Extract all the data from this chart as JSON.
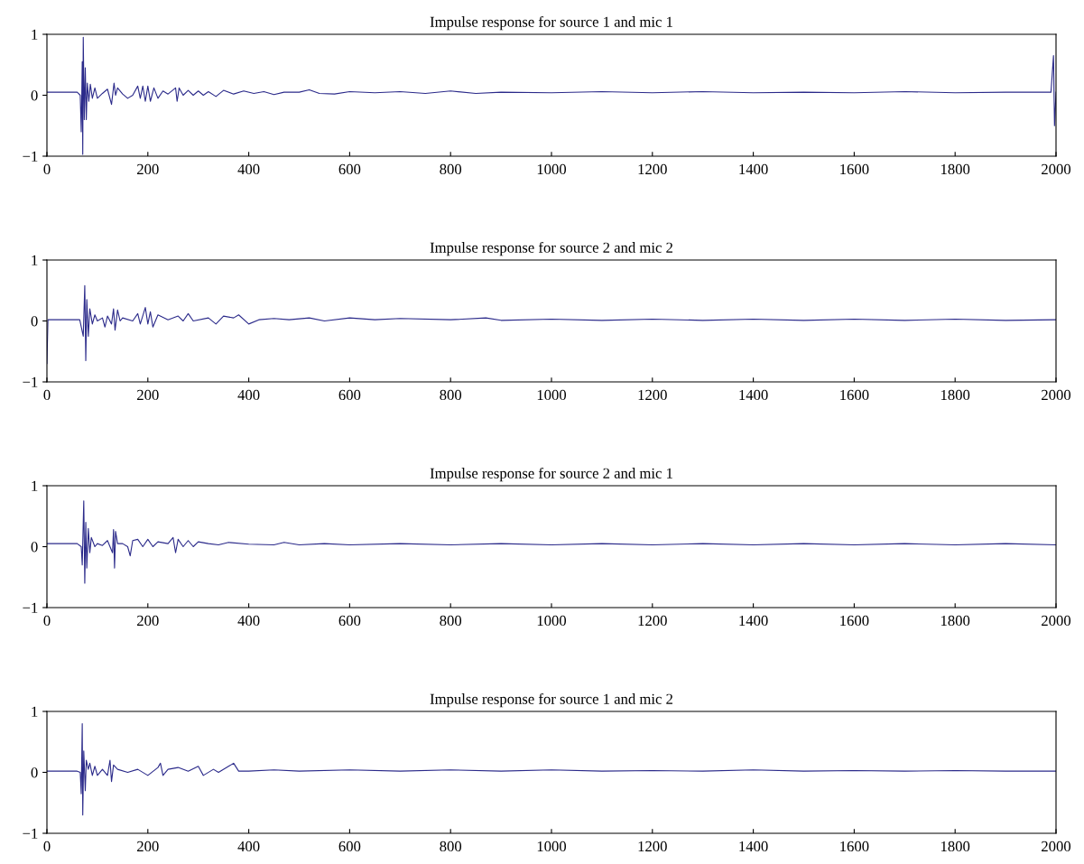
{
  "chart_data": [
    {
      "type": "line",
      "title": "Impulse response for source 1 and mic 1",
      "xlim": [
        0,
        2000
      ],
      "ylim": [
        -1,
        1
      ],
      "xticks": [
        0,
        200,
        400,
        600,
        800,
        1000,
        1200,
        1400,
        1600,
        1800,
        2000
      ],
      "yticks": [
        -1,
        0,
        1
      ],
      "grid": false,
      "x": [
        0,
        60,
        66,
        68,
        70,
        71,
        72,
        74,
        76,
        78,
        80,
        83,
        86,
        90,
        95,
        100,
        110,
        120,
        128,
        133,
        136,
        140,
        150,
        160,
        170,
        180,
        185,
        190,
        195,
        200,
        205,
        212,
        220,
        230,
        240,
        255,
        258,
        262,
        270,
        280,
        290,
        300,
        310,
        320,
        335,
        350,
        370,
        390,
        410,
        430,
        450,
        470,
        500,
        520,
        540,
        570,
        600,
        650,
        700,
        750,
        800,
        850,
        900,
        1000,
        1100,
        1200,
        1300,
        1400,
        1500,
        1600,
        1700,
        1800,
        1900,
        1990,
        1995,
        1997,
        2000
      ],
      "series": [
        {
          "color": "#2b2a8a",
          "values": [
            0.05,
            0.05,
            0.0,
            -0.6,
            0.55,
            -0.97,
            0.95,
            -0.4,
            0.45,
            -0.4,
            0.2,
            -0.1,
            0.18,
            -0.05,
            0.12,
            -0.05,
            0.03,
            0.1,
            -0.15,
            0.2,
            0.0,
            0.12,
            0.02,
            -0.05,
            0.0,
            0.15,
            -0.05,
            0.15,
            -0.1,
            0.15,
            -0.1,
            0.12,
            -0.05,
            0.07,
            0.02,
            0.12,
            -0.1,
            0.12,
            0.0,
            0.08,
            0.0,
            0.07,
            0.0,
            0.06,
            -0.02,
            0.08,
            0.02,
            0.07,
            0.03,
            0.06,
            0.01,
            0.05,
            0.05,
            0.09,
            0.03,
            0.02,
            0.06,
            0.04,
            0.06,
            0.03,
            0.07,
            0.03,
            0.05,
            0.04,
            0.06,
            0.04,
            0.06,
            0.04,
            0.05,
            0.04,
            0.06,
            0.04,
            0.05,
            0.05,
            0.65,
            -0.5,
            0.05
          ]
        }
      ]
    },
    {
      "type": "line",
      "title": "Impulse response for source 2 and mic 2",
      "xlim": [
        0,
        2000
      ],
      "ylim": [
        -1,
        1
      ],
      "xticks": [
        0,
        200,
        400,
        600,
        800,
        1000,
        1200,
        1400,
        1600,
        1800,
        2000
      ],
      "yticks": [
        -1,
        0,
        1
      ],
      "grid": false,
      "x": [
        0,
        2,
        20,
        65,
        72,
        75,
        77,
        79,
        82,
        85,
        90,
        95,
        100,
        110,
        115,
        120,
        128,
        132,
        135,
        140,
        145,
        150,
        170,
        180,
        185,
        195,
        200,
        205,
        210,
        220,
        240,
        260,
        270,
        280,
        290,
        320,
        335,
        350,
        370,
        380,
        400,
        420,
        450,
        480,
        520,
        550,
        600,
        650,
        700,
        800,
        870,
        900,
        1000,
        1100,
        1200,
        1300,
        1400,
        1500,
        1600,
        1700,
        1800,
        1900,
        2000
      ],
      "series": [
        {
          "color": "#2b2a8a",
          "values": [
            -0.7,
            0.02,
            0.02,
            0.02,
            -0.25,
            0.58,
            -0.65,
            0.35,
            -0.25,
            0.2,
            -0.05,
            0.1,
            0.0,
            0.05,
            -0.1,
            0.08,
            -0.05,
            0.2,
            -0.15,
            0.18,
            0.0,
            0.05,
            0.0,
            0.12,
            -0.05,
            0.22,
            -0.05,
            0.15,
            -0.1,
            0.1,
            0.02,
            0.08,
            0.0,
            0.12,
            0.0,
            0.05,
            -0.05,
            0.08,
            0.05,
            0.1,
            -0.05,
            0.02,
            0.04,
            0.02,
            0.05,
            0.0,
            0.05,
            0.02,
            0.04,
            0.02,
            0.05,
            0.01,
            0.03,
            0.01,
            0.03,
            0.01,
            0.03,
            0.01,
            0.03,
            0.01,
            0.03,
            0.01,
            0.02
          ]
        }
      ]
    },
    {
      "type": "line",
      "title": "Impulse response for source 2 and mic 1",
      "xlim": [
        0,
        2000
      ],
      "ylim": [
        -1,
        1
      ],
      "xticks": [
        0,
        200,
        400,
        600,
        800,
        1000,
        1200,
        1400,
        1600,
        1800,
        2000
      ],
      "yticks": [
        -1,
        0,
        1
      ],
      "grid": false,
      "x": [
        0,
        60,
        68,
        70,
        73,
        75,
        77,
        79,
        82,
        85,
        88,
        95,
        100,
        110,
        120,
        130,
        132,
        134,
        136,
        140,
        150,
        160,
        165,
        170,
        180,
        190,
        200,
        210,
        220,
        240,
        250,
        255,
        260,
        270,
        280,
        290,
        300,
        320,
        340,
        360,
        400,
        450,
        470,
        500,
        550,
        600,
        700,
        800,
        900,
        1000,
        1100,
        1200,
        1300,
        1400,
        1500,
        1600,
        1700,
        1800,
        1900,
        2000
      ],
      "series": [
        {
          "color": "#2b2a8a",
          "values": [
            0.05,
            0.05,
            0.0,
            -0.3,
            0.75,
            -0.6,
            0.4,
            -0.35,
            0.3,
            -0.1,
            0.15,
            0.0,
            0.05,
            0.02,
            0.1,
            -0.1,
            0.28,
            -0.35,
            0.25,
            0.05,
            0.05,
            0.0,
            -0.15,
            0.1,
            0.12,
            0.0,
            0.12,
            0.0,
            0.08,
            0.05,
            0.15,
            -0.1,
            0.12,
            0.0,
            0.1,
            0.0,
            0.08,
            0.05,
            0.03,
            0.07,
            0.04,
            0.03,
            0.07,
            0.03,
            0.05,
            0.03,
            0.05,
            0.03,
            0.05,
            0.03,
            0.05,
            0.03,
            0.05,
            0.03,
            0.05,
            0.03,
            0.05,
            0.03,
            0.05,
            0.03
          ]
        }
      ]
    },
    {
      "type": "line",
      "title": "Impulse response for source 1 and mic 2",
      "xlim": [
        0,
        2000
      ],
      "ylim": [
        -1,
        1
      ],
      "xticks": [
        0,
        200,
        400,
        600,
        800,
        1000,
        1200,
        1400,
        1600,
        1800,
        2000
      ],
      "yticks": [
        -1,
        0,
        1
      ],
      "grid": false,
      "x": [
        0,
        60,
        66,
        68,
        70,
        71,
        73,
        76,
        78,
        82,
        85,
        90,
        95,
        100,
        110,
        120,
        125,
        128,
        132,
        140,
        160,
        180,
        200,
        220,
        225,
        230,
        240,
        260,
        280,
        300,
        310,
        330,
        340,
        360,
        370,
        380,
        400,
        450,
        500,
        600,
        700,
        800,
        900,
        1000,
        1100,
        1200,
        1300,
        1400,
        1500,
        1600,
        1700,
        1800,
        1900,
        2000
      ],
      "series": [
        {
          "color": "#2b2a8a",
          "values": [
            0.02,
            0.02,
            0.0,
            -0.35,
            0.8,
            -0.7,
            0.35,
            -0.3,
            0.2,
            0.05,
            0.15,
            -0.05,
            0.1,
            -0.05,
            0.05,
            -0.05,
            0.2,
            -0.15,
            0.12,
            0.05,
            0.0,
            0.05,
            -0.05,
            0.08,
            0.15,
            -0.05,
            0.05,
            0.08,
            0.02,
            0.1,
            -0.05,
            0.05,
            0.0,
            0.1,
            0.15,
            0.02,
            0.02,
            0.04,
            0.02,
            0.04,
            0.02,
            0.04,
            0.02,
            0.04,
            0.02,
            0.03,
            0.02,
            0.04,
            0.02,
            0.03,
            0.02,
            0.03,
            0.02,
            0.02
          ]
        }
      ]
    }
  ]
}
